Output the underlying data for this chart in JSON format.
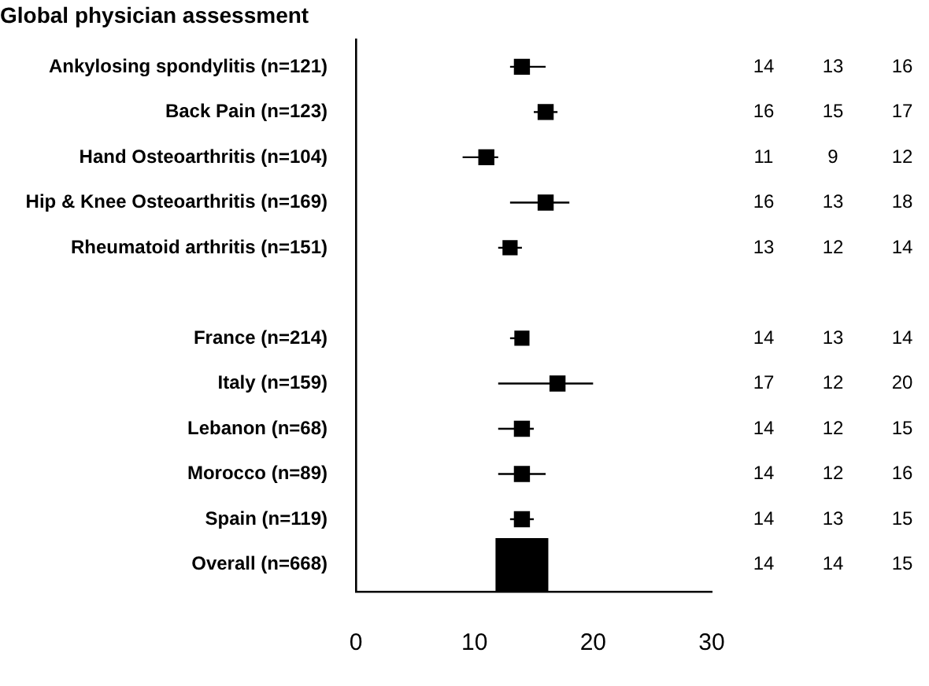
{
  "chart_data": {
    "type": "bubble",
    "title": "Global physician assessment",
    "orientation": "horizontal",
    "marker": "square",
    "categories": [
      "Ankylosing spondylitis (n=121)",
      "Back Pain (n=123)",
      "Hand Osteoarthritis (n=104)",
      "Hip & Knee Osteoarthritis (n=169)",
      "Rheumatoid arthritis (n=151)",
      null,
      "France (n=214)",
      "Italy (n=159)",
      "Lebanon (n=68)",
      "Morocco (n=89)",
      "Spain (n=119)",
      "Overall (n=668)"
    ],
    "series": [
      {
        "color": "#000000",
        "values": [
          14,
          16,
          11,
          16,
          13,
          null,
          14,
          17,
          14,
          14,
          14,
          14
        ],
        "errors": [
          [
            13,
            16
          ],
          [
            15,
            17
          ],
          [
            9,
            12
          ],
          [
            13,
            18
          ],
          [
            12,
            14
          ],
          null,
          [
            13,
            14
          ],
          [
            12,
            20
          ],
          [
            12,
            15
          ],
          [
            12,
            16
          ],
          [
            13,
            15
          ],
          null
        ],
        "sizes": [
          0.08,
          0.08,
          0.08,
          0.08,
          0.07,
          null,
          0.07,
          0.08,
          0.08,
          0.08,
          0.08,
          1
        ]
      }
    ],
    "annotations": [
      "13",
      "16",
      "15",
      "17",
      "9",
      "12",
      "13",
      "18",
      "12",
      "14",
      "13",
      "14",
      "12",
      "20",
      "12",
      "15",
      "12",
      "16",
      "13",
      "15",
      "14",
      "15"
    ],
    "xlim": [
      0,
      30
    ],
    "xticks": [
      0,
      10,
      20,
      30
    ],
    "grid": false,
    "legend": false,
    "data_labels": true
  }
}
